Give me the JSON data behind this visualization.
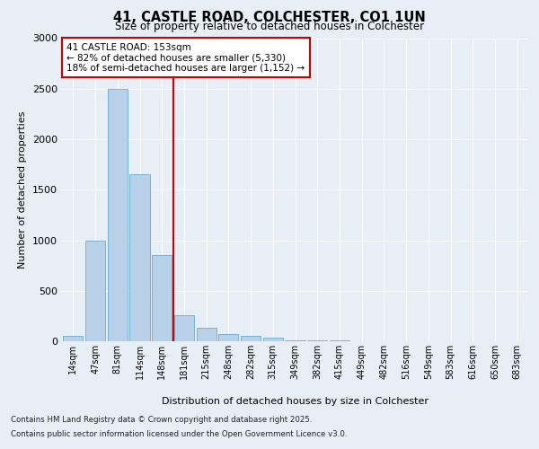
{
  "title1": "41, CASTLE ROAD, COLCHESTER, CO1 1UN",
  "title2": "Size of property relative to detached houses in Colchester",
  "xlabel": "Distribution of detached houses by size in Colchester",
  "ylabel": "Number of detached properties",
  "bins": [
    "14sqm",
    "47sqm",
    "81sqm",
    "114sqm",
    "148sqm",
    "181sqm",
    "215sqm",
    "248sqm",
    "282sqm",
    "315sqm",
    "349sqm",
    "382sqm",
    "415sqm",
    "449sqm",
    "482sqm",
    "516sqm",
    "549sqm",
    "583sqm",
    "616sqm",
    "650sqm",
    "683sqm"
  ],
  "values": [
    55,
    1000,
    2500,
    1650,
    850,
    255,
    130,
    75,
    55,
    40,
    12,
    7,
    5,
    3,
    2,
    1,
    0,
    0,
    0,
    0,
    0
  ],
  "bar_color": "#b8d0e8",
  "bar_edgecolor": "#6aaed6",
  "vline_color": "#cc0000",
  "vline_pos": 4.5,
  "annotation_text": "41 CASTLE ROAD: 153sqm\n← 82% of detached houses are smaller (5,330)\n18% of semi-detached houses are larger (1,152) →",
  "annotation_box_edgecolor": "#cc0000",
  "ylim": [
    0,
    3000
  ],
  "yticks": [
    0,
    500,
    1000,
    1500,
    2000,
    2500,
    3000
  ],
  "footnote1": "Contains HM Land Registry data © Crown copyright and database right 2025.",
  "footnote2": "Contains public sector information licensed under the Open Government Licence v3.0.",
  "background_color": "#e8eef5",
  "plot_bg_color": "#e8eef5",
  "grid_color": "#ffffff"
}
